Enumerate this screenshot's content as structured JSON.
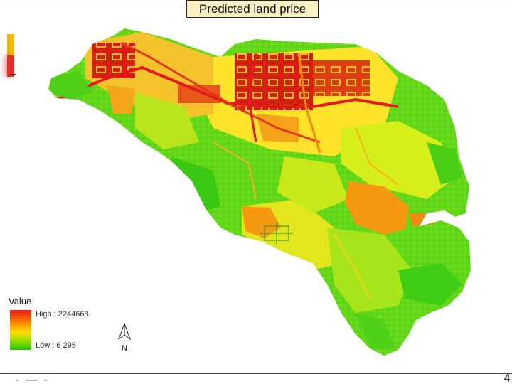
{
  "title": "Predicted land price",
  "legend": {
    "title": "Value",
    "high_label": "High : 2244668",
    "low_label": "Low : 6 295",
    "colors": [
      "#e31a1c",
      "#ff7f00",
      "#ffdd00",
      "#a6e000",
      "#22c800"
    ]
  },
  "north_arrow": {
    "label": "N"
  },
  "footer": {
    "page_number": "4"
  }
}
